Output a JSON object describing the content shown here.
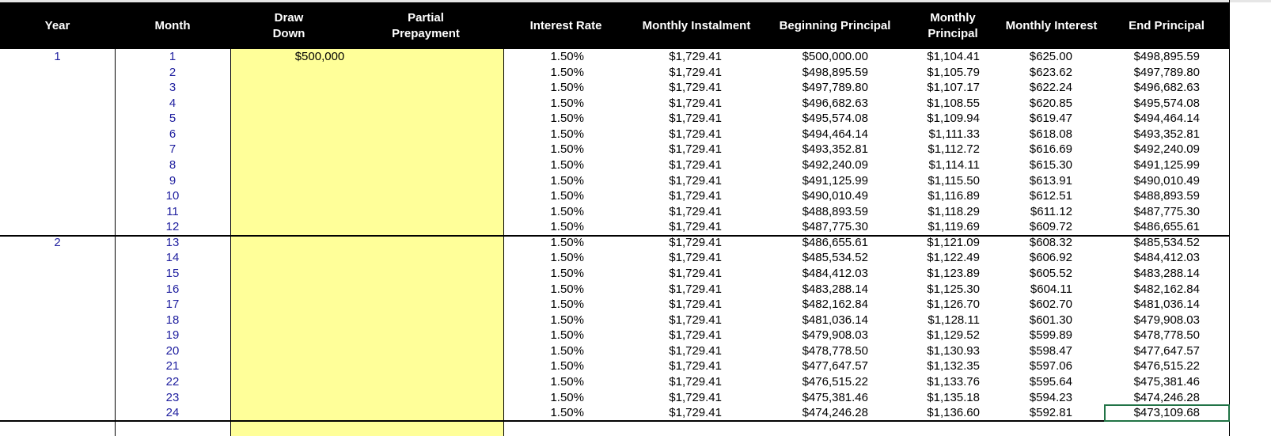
{
  "table": {
    "headers": [
      "Year",
      "Month",
      "Draw\nDown",
      "Partial\nPrepayment",
      "Interest Rate",
      "Monthly Instalment",
      "Beginning Principal",
      "Monthly\nPrincipal",
      "Monthly Interest",
      "End Principal"
    ],
    "rows": [
      {
        "year": "1",
        "draw_down": "$500,000",
        "cells": [
          "1",
          "1.50%",
          "$1,729.41",
          "$500,000.00",
          "$1,104.41",
          "$625.00",
          "$498,895.59"
        ]
      },
      {
        "cells": [
          "2",
          "1.50%",
          "$1,729.41",
          "$498,895.59",
          "$1,105.79",
          "$623.62",
          "$497,789.80"
        ]
      },
      {
        "cells": [
          "3",
          "1.50%",
          "$1,729.41",
          "$497,789.80",
          "$1,107.17",
          "$622.24",
          "$496,682.63"
        ]
      },
      {
        "cells": [
          "4",
          "1.50%",
          "$1,729.41",
          "$496,682.63",
          "$1,108.55",
          "$620.85",
          "$495,574.08"
        ]
      },
      {
        "cells": [
          "5",
          "1.50%",
          "$1,729.41",
          "$495,574.08",
          "$1,109.94",
          "$619.47",
          "$494,464.14"
        ]
      },
      {
        "cells": [
          "6",
          "1.50%",
          "$1,729.41",
          "$494,464.14",
          "$1,111.33",
          "$618.08",
          "$493,352.81"
        ]
      },
      {
        "cells": [
          "7",
          "1.50%",
          "$1,729.41",
          "$493,352.81",
          "$1,112.72",
          "$616.69",
          "$492,240.09"
        ]
      },
      {
        "cells": [
          "8",
          "1.50%",
          "$1,729.41",
          "$492,240.09",
          "$1,114.11",
          "$615.30",
          "$491,125.99"
        ]
      },
      {
        "cells": [
          "9",
          "1.50%",
          "$1,729.41",
          "$491,125.99",
          "$1,115.50",
          "$613.91",
          "$490,010.49"
        ]
      },
      {
        "cells": [
          "10",
          "1.50%",
          "$1,729.41",
          "$490,010.49",
          "$1,116.89",
          "$612.51",
          "$488,893.59"
        ]
      },
      {
        "cells": [
          "11",
          "1.50%",
          "$1,729.41",
          "$488,893.59",
          "$1,118.29",
          "$611.12",
          "$487,775.30"
        ]
      },
      {
        "cells": [
          "12",
          "1.50%",
          "$1,729.41",
          "$487,775.30",
          "$1,119.69",
          "$609.72",
          "$486,655.61"
        ]
      },
      {
        "year": "2",
        "cells": [
          "13",
          "1.50%",
          "$1,729.41",
          "$486,655.61",
          "$1,121.09",
          "$608.32",
          "$485,534.52"
        ]
      },
      {
        "cells": [
          "14",
          "1.50%",
          "$1,729.41",
          "$485,534.52",
          "$1,122.49",
          "$606.92",
          "$484,412.03"
        ]
      },
      {
        "cells": [
          "15",
          "1.50%",
          "$1,729.41",
          "$484,412.03",
          "$1,123.89",
          "$605.52",
          "$483,288.14"
        ]
      },
      {
        "cells": [
          "16",
          "1.50%",
          "$1,729.41",
          "$483,288.14",
          "$1,125.30",
          "$604.11",
          "$482,162.84"
        ]
      },
      {
        "cells": [
          "17",
          "1.50%",
          "$1,729.41",
          "$482,162.84",
          "$1,126.70",
          "$602.70",
          "$481,036.14"
        ]
      },
      {
        "cells": [
          "18",
          "1.50%",
          "$1,729.41",
          "$481,036.14",
          "$1,128.11",
          "$601.30",
          "$479,908.03"
        ]
      },
      {
        "cells": [
          "19",
          "1.50%",
          "$1,729.41",
          "$479,908.03",
          "$1,129.52",
          "$599.89",
          "$478,778.50"
        ]
      },
      {
        "cells": [
          "20",
          "1.50%",
          "$1,729.41",
          "$478,778.50",
          "$1,130.93",
          "$598.47",
          "$477,647.57"
        ]
      },
      {
        "cells": [
          "21",
          "1.50%",
          "$1,729.41",
          "$477,647.57",
          "$1,132.35",
          "$597.06",
          "$476,515.22"
        ]
      },
      {
        "cells": [
          "22",
          "1.50%",
          "$1,729.41",
          "$476,515.22",
          "$1,133.76",
          "$595.64",
          "$475,381.46"
        ]
      },
      {
        "cells": [
          "23",
          "1.50%",
          "$1,729.41",
          "$475,381.46",
          "$1,135.18",
          "$594.23",
          "$474,246.28"
        ]
      },
      {
        "cells": [
          "24",
          "1.50%",
          "$1,729.41",
          "$474,246.28",
          "$1,136.60",
          "$592.81",
          "$473,109.68"
        ]
      }
    ]
  }
}
